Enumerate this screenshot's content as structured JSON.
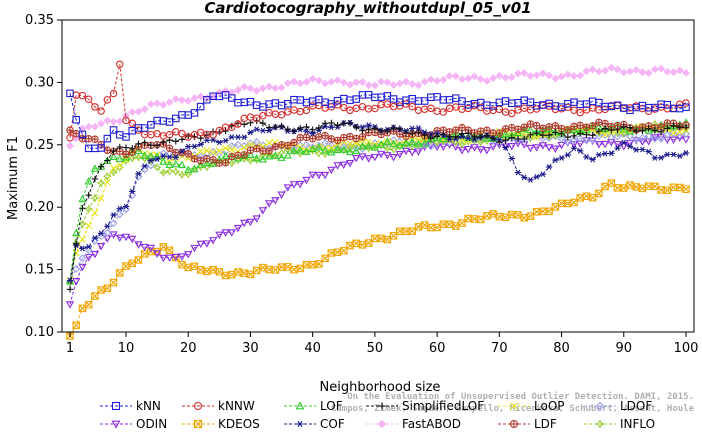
{
  "chart_data": {
    "type": "line",
    "title": "Cardiotocography_withoutdupl_05_v01",
    "xlabel": "Neighborhood size",
    "ylabel": "Maximum F1",
    "xlim": [
      1,
      100
    ],
    "ylim": [
      0.1,
      0.35
    ],
    "xticks": [
      1,
      10,
      20,
      30,
      40,
      50,
      60,
      70,
      80,
      90,
      100
    ],
    "yticks": [
      0.1,
      0.15,
      0.2,
      0.25,
      0.3,
      0.35
    ],
    "ytick_labels": [
      "0.10",
      "0.15",
      "0.20",
      "0.25",
      "0.30",
      "0.35"
    ],
    "legend_placement": "bottom",
    "watermark": [
      "Campos, Zimek, Sander, Campello, Micenkova, Schubert, Assent, Houle",
      "On the Evaluation of Unsupervised Outlier Detection. DAMI, 2015."
    ],
    "series": [
      {
        "name": "kNN",
        "color": "#1f1fd6",
        "marker": "square",
        "knots": [
          [
            1,
            0.289
          ],
          [
            2,
            0.27
          ],
          [
            4,
            0.245
          ],
          [
            6,
            0.25
          ],
          [
            8,
            0.262
          ],
          [
            10,
            0.258
          ],
          [
            14,
            0.265
          ],
          [
            18,
            0.272
          ],
          [
            22,
            0.28
          ],
          [
            24,
            0.289
          ],
          [
            28,
            0.285
          ],
          [
            35,
            0.282
          ],
          [
            40,
            0.285
          ],
          [
            50,
            0.288
          ],
          [
            60,
            0.286
          ],
          [
            70,
            0.283
          ],
          [
            80,
            0.283
          ],
          [
            90,
            0.281
          ],
          [
            100,
            0.279
          ]
        ]
      },
      {
        "name": "kNNW",
        "color": "#d42a2a",
        "marker": "circle",
        "knots": [
          [
            1,
            0.258
          ],
          [
            2,
            0.292
          ],
          [
            4,
            0.285
          ],
          [
            6,
            0.276
          ],
          [
            8,
            0.29
          ],
          [
            9,
            0.316
          ],
          [
            10,
            0.27
          ],
          [
            14,
            0.258
          ],
          [
            20,
            0.257
          ],
          [
            25,
            0.262
          ],
          [
            30,
            0.27
          ],
          [
            35,
            0.277
          ],
          [
            40,
            0.279
          ],
          [
            50,
            0.281
          ],
          [
            60,
            0.279
          ],
          [
            70,
            0.278
          ],
          [
            80,
            0.279
          ],
          [
            90,
            0.279
          ],
          [
            100,
            0.281
          ]
        ]
      },
      {
        "name": "LOF",
        "color": "#2ecc2e",
        "marker": "triangle-up",
        "knots": [
          [
            1,
            0.14
          ],
          [
            2,
            0.18
          ],
          [
            3,
            0.205
          ],
          [
            5,
            0.23
          ],
          [
            8,
            0.24
          ],
          [
            12,
            0.245
          ],
          [
            16,
            0.235
          ],
          [
            20,
            0.232
          ],
          [
            25,
            0.238
          ],
          [
            30,
            0.24
          ],
          [
            35,
            0.242
          ],
          [
            40,
            0.245
          ],
          [
            50,
            0.248
          ],
          [
            60,
            0.255
          ],
          [
            70,
            0.258
          ],
          [
            80,
            0.262
          ],
          [
            90,
            0.263
          ],
          [
            100,
            0.265
          ]
        ]
      },
      {
        "name": "SimplifiedLOF",
        "color": "#111111",
        "marker": "plus",
        "knots": [
          [
            1,
            0.135
          ],
          [
            2,
            0.17
          ],
          [
            3,
            0.2
          ],
          [
            4,
            0.21
          ],
          [
            6,
            0.23
          ],
          [
            8,
            0.245
          ],
          [
            12,
            0.252
          ],
          [
            16,
            0.25
          ],
          [
            20,
            0.255
          ],
          [
            25,
            0.262
          ],
          [
            30,
            0.267
          ],
          [
            35,
            0.265
          ],
          [
            40,
            0.262
          ],
          [
            45,
            0.268
          ],
          [
            50,
            0.262
          ],
          [
            60,
            0.258
          ],
          [
            70,
            0.255
          ],
          [
            80,
            0.258
          ],
          [
            90,
            0.262
          ],
          [
            100,
            0.264
          ]
        ]
      },
      {
        "name": "LoOP",
        "color": "#e6e620",
        "marker": "x",
        "knots": [
          [
            1,
            0.14
          ],
          [
            2,
            0.165
          ],
          [
            4,
            0.185
          ],
          [
            6,
            0.21
          ],
          [
            8,
            0.23
          ],
          [
            12,
            0.245
          ],
          [
            16,
            0.24
          ],
          [
            20,
            0.24
          ],
          [
            25,
            0.245
          ],
          [
            30,
            0.25
          ],
          [
            40,
            0.248
          ],
          [
            50,
            0.252
          ],
          [
            60,
            0.255
          ],
          [
            70,
            0.258
          ],
          [
            80,
            0.26
          ],
          [
            90,
            0.262
          ],
          [
            100,
            0.262
          ]
        ]
      },
      {
        "name": "LDOF",
        "color": "#9aa0e8",
        "marker": "diamond",
        "knots": [
          [
            1,
            0.14
          ],
          [
            3,
            0.16
          ],
          [
            5,
            0.17
          ],
          [
            7,
            0.18
          ],
          [
            10,
            0.2
          ],
          [
            12,
            0.225
          ],
          [
            15,
            0.24
          ],
          [
            20,
            0.242
          ],
          [
            25,
            0.245
          ],
          [
            30,
            0.25
          ],
          [
            40,
            0.248
          ],
          [
            50,
            0.25
          ],
          [
            60,
            0.252
          ],
          [
            70,
            0.255
          ],
          [
            80,
            0.255
          ],
          [
            90,
            0.256
          ],
          [
            100,
            0.258
          ]
        ]
      },
      {
        "name": "ODIN",
        "color": "#8a2be2",
        "marker": "triangle-down",
        "knots": [
          [
            1,
            0.122
          ],
          [
            2,
            0.14
          ],
          [
            4,
            0.16
          ],
          [
            6,
            0.17
          ],
          [
            8,
            0.18
          ],
          [
            10,
            0.175
          ],
          [
            12,
            0.17
          ],
          [
            15,
            0.162
          ],
          [
            18,
            0.16
          ],
          [
            20,
            0.165
          ],
          [
            25,
            0.175
          ],
          [
            30,
            0.19
          ],
          [
            35,
            0.21
          ],
          [
            40,
            0.225
          ],
          [
            45,
            0.235
          ],
          [
            50,
            0.24
          ],
          [
            55,
            0.245
          ],
          [
            60,
            0.248
          ],
          [
            70,
            0.248
          ],
          [
            80,
            0.25
          ],
          [
            90,
            0.252
          ],
          [
            100,
            0.255
          ]
        ]
      },
      {
        "name": "KDEOS",
        "color": "#f0a500",
        "marker": "square-x",
        "knots": [
          [
            1,
            0.098
          ],
          [
            2,
            0.105
          ],
          [
            3,
            0.12
          ],
          [
            5,
            0.13
          ],
          [
            7,
            0.135
          ],
          [
            9,
            0.145
          ],
          [
            11,
            0.155
          ],
          [
            14,
            0.165
          ],
          [
            16,
            0.17
          ],
          [
            18,
            0.16
          ],
          [
            20,
            0.15
          ],
          [
            25,
            0.148
          ],
          [
            30,
            0.148
          ],
          [
            35,
            0.15
          ],
          [
            40,
            0.155
          ],
          [
            45,
            0.165
          ],
          [
            50,
            0.175
          ],
          [
            55,
            0.18
          ],
          [
            60,
            0.185
          ],
          [
            65,
            0.19
          ],
          [
            70,
            0.192
          ],
          [
            75,
            0.195
          ],
          [
            80,
            0.2
          ],
          [
            85,
            0.21
          ],
          [
            88,
            0.22
          ],
          [
            90,
            0.215
          ],
          [
            95,
            0.215
          ],
          [
            100,
            0.217
          ]
        ]
      },
      {
        "name": "COF",
        "color": "#1a1a8c",
        "marker": "asterisk",
        "knots": [
          [
            1,
            0.14
          ],
          [
            2,
            0.17
          ],
          [
            4,
            0.17
          ],
          [
            6,
            0.18
          ],
          [
            8,
            0.192
          ],
          [
            10,
            0.2
          ],
          [
            12,
            0.225
          ],
          [
            14,
            0.24
          ],
          [
            18,
            0.242
          ],
          [
            22,
            0.25
          ],
          [
            26,
            0.255
          ],
          [
            30,
            0.26
          ],
          [
            35,
            0.262
          ],
          [
            40,
            0.262
          ],
          [
            45,
            0.265
          ],
          [
            50,
            0.265
          ],
          [
            55,
            0.262
          ],
          [
            60,
            0.258
          ],
          [
            65,
            0.256
          ],
          [
            70,
            0.254
          ],
          [
            73,
            0.23
          ],
          [
            75,
            0.222
          ],
          [
            78,
            0.232
          ],
          [
            82,
            0.245
          ],
          [
            85,
            0.24
          ],
          [
            90,
            0.25
          ],
          [
            95,
            0.24
          ],
          [
            100,
            0.245
          ]
        ]
      },
      {
        "name": "FastABOD",
        "color": "#f5b5f5",
        "marker": "diamond-filled",
        "knots": [
          [
            1,
            0.25
          ],
          [
            3,
            0.26
          ],
          [
            5,
            0.265
          ],
          [
            8,
            0.27
          ],
          [
            12,
            0.278
          ],
          [
            16,
            0.282
          ],
          [
            20,
            0.288
          ],
          [
            25,
            0.29
          ],
          [
            30,
            0.295
          ],
          [
            35,
            0.298
          ],
          [
            40,
            0.3
          ],
          [
            45,
            0.302
          ],
          [
            50,
            0.297
          ],
          [
            55,
            0.3
          ],
          [
            60,
            0.302
          ],
          [
            65,
            0.303
          ],
          [
            70,
            0.305
          ],
          [
            75,
            0.305
          ],
          [
            80,
            0.306
          ],
          [
            85,
            0.308
          ],
          [
            90,
            0.31
          ],
          [
            95,
            0.31
          ],
          [
            100,
            0.306
          ]
        ]
      },
      {
        "name": "LDF",
        "color": "#b03a2e",
        "marker": "circle-plus",
        "knots": [
          [
            1,
            0.26
          ],
          [
            3,
            0.255
          ],
          [
            6,
            0.25
          ],
          [
            8,
            0.245
          ],
          [
            10,
            0.245
          ],
          [
            14,
            0.25
          ],
          [
            18,
            0.245
          ],
          [
            22,
            0.24
          ],
          [
            26,
            0.235
          ],
          [
            30,
            0.245
          ],
          [
            35,
            0.25
          ],
          [
            40,
            0.255
          ],
          [
            50,
            0.258
          ],
          [
            60,
            0.26
          ],
          [
            70,
            0.262
          ],
          [
            80,
            0.265
          ],
          [
            90,
            0.265
          ],
          [
            100,
            0.265
          ]
        ]
      },
      {
        "name": "INFLO",
        "color": "#9acd32",
        "marker": "star",
        "knots": [
          [
            1,
            0.14
          ],
          [
            2,
            0.17
          ],
          [
            4,
            0.2
          ],
          [
            6,
            0.22
          ],
          [
            8,
            0.23
          ],
          [
            12,
            0.24
          ],
          [
            16,
            0.23
          ],
          [
            20,
            0.228
          ],
          [
            25,
            0.235
          ],
          [
            30,
            0.24
          ],
          [
            40,
            0.245
          ],
          [
            50,
            0.248
          ],
          [
            60,
            0.252
          ],
          [
            70,
            0.255
          ],
          [
            80,
            0.26
          ],
          [
            90,
            0.262
          ],
          [
            100,
            0.265
          ]
        ]
      }
    ]
  }
}
